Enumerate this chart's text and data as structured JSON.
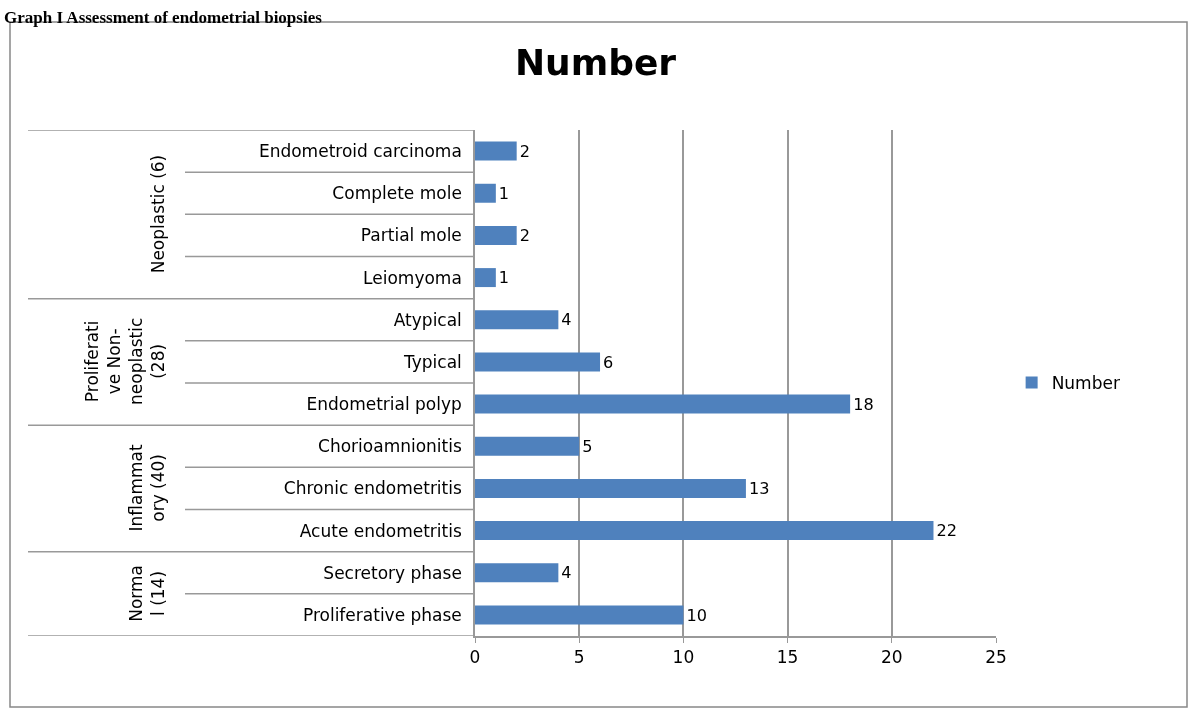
{
  "chart_data": {
    "type": "bar",
    "orientation": "horizontal",
    "title": "Number",
    "categories": [
      "Endometroid carcinoma",
      "Complete mole",
      "Partial mole",
      "Leiomyoma",
      "Atypical",
      "Typical",
      "Endometrial polyp",
      "Chorioamnionitis",
      "Chronic endometritis",
      "Acute endometritis",
      "Secretory phase",
      "Proliferative phase"
    ],
    "series": [
      {
        "name": "Number",
        "color": "#4f81bd",
        "values": [
          2,
          1,
          2,
          1,
          4,
          6,
          18,
          5,
          13,
          22,
          4,
          10
        ]
      }
    ],
    "xlim": [
      0,
      25
    ],
    "xticks": [
      0,
      5,
      10,
      15,
      20,
      25
    ],
    "grid": "x",
    "legend": "right",
    "data_labels": true,
    "annotations": [
      "Graph I Assessment of endometrial biopsies",
      "Neoplastic (6)",
      "Proliferati\nve Non-\nneoplastic\n(28)",
      "Inflammat\nory (40)",
      "Norma\nl (14)"
    ]
  }
}
